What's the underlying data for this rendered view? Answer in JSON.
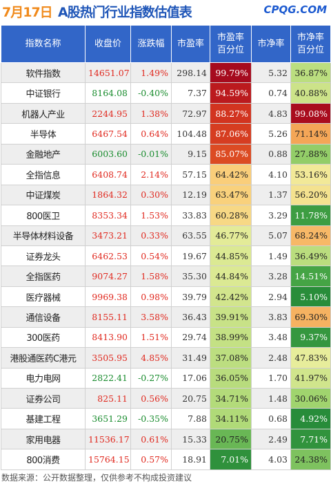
{
  "header": {
    "date": "7月17日",
    "title": "A股热门行业指数估值表",
    "logo": "CPQG.COM"
  },
  "table": {
    "columns": [
      "指数名称",
      "收盘价",
      "涨跌幅",
      "市盈率",
      "市盈率\n百分位",
      "市净率",
      "市净率\n百分位"
    ],
    "rows": [
      {
        "name": "软件指数",
        "close": "14651.07",
        "change": "1.49%",
        "pe": "298.14",
        "pe_pct": "99.79%",
        "pb": "5.32",
        "pb_pct": "36.87%"
      },
      {
        "name": "中证银行",
        "close": "8164.08",
        "change": "-0.40%",
        "pe": "7.37",
        "pe_pct": "94.59%",
        "pb": "0.74",
        "pb_pct": "40.88%"
      },
      {
        "name": "机器人产业",
        "close": "2244.95",
        "change": "1.38%",
        "pe": "72.97",
        "pe_pct": "88.27%",
        "pb": "4.83",
        "pb_pct": "99.08%"
      },
      {
        "name": "半导体",
        "close": "6467.54",
        "change": "0.64%",
        "pe": "104.48",
        "pe_pct": "87.06%",
        "pb": "5.26",
        "pb_pct": "71.14%"
      },
      {
        "name": "金融地产",
        "close": "6003.60",
        "change": "-0.01%",
        "pe": "9.15",
        "pe_pct": "85.07%",
        "pb": "0.88",
        "pb_pct": "27.88%"
      },
      {
        "name": "全指信息",
        "close": "6408.74",
        "change": "2.14%",
        "pe": "57.15",
        "pe_pct": "64.42%",
        "pb": "4.10",
        "pb_pct": "53.16%"
      },
      {
        "name": "中证煤炭",
        "close": "1864.32",
        "change": "0.30%",
        "pe": "12.19",
        "pe_pct": "63.47%",
        "pb": "1.37",
        "pb_pct": "56.20%"
      },
      {
        "name": "800医卫",
        "close": "8353.34",
        "change": "1.53%",
        "pe": "33.83",
        "pe_pct": "60.28%",
        "pb": "3.29",
        "pb_pct": "11.78%"
      },
      {
        "name": "半导体材料设备",
        "close": "3473.21",
        "change": "0.33%",
        "pe": "63.55",
        "pe_pct": "46.77%",
        "pb": "5.07",
        "pb_pct": "68.24%"
      },
      {
        "name": "证券龙头",
        "close": "6462.53",
        "change": "0.54%",
        "pe": "19.67",
        "pe_pct": "44.85%",
        "pb": "1.49",
        "pb_pct": "36.49%"
      },
      {
        "name": "全指医药",
        "close": "9074.27",
        "change": "1.58%",
        "pe": "35.30",
        "pe_pct": "44.84%",
        "pb": "3.28",
        "pb_pct": "14.51%"
      },
      {
        "name": "医疗器械",
        "close": "9969.38",
        "change": "0.98%",
        "pe": "39.79",
        "pe_pct": "42.42%",
        "pb": "2.94",
        "pb_pct": "5.10%"
      },
      {
        "name": "通信设备",
        "close": "8155.11",
        "change": "3.58%",
        "pe": "36.43",
        "pe_pct": "39.91%",
        "pb": "3.83",
        "pb_pct": "69.30%"
      },
      {
        "name": "300医药",
        "close": "8413.90",
        "change": "1.51%",
        "pe": "29.74",
        "pe_pct": "38.99%",
        "pb": "3.48",
        "pb_pct": "9.37%"
      },
      {
        "name": "港股通医药C港元",
        "close": "3505.95",
        "change": "4.85%",
        "pe": "31.49",
        "pe_pct": "37.08%",
        "pb": "2.48",
        "pb_pct": "47.83%"
      },
      {
        "name": "电力电网",
        "close": "2822.41",
        "change": "-0.27%",
        "pe": "17.06",
        "pe_pct": "36.05%",
        "pb": "1.70",
        "pb_pct": "41.97%"
      },
      {
        "name": "证券公司",
        "close": "825.11",
        "change": "0.56%",
        "pe": "20.75",
        "pe_pct": "34.71%",
        "pb": "1.48",
        "pb_pct": "30.06%"
      },
      {
        "name": "基建工程",
        "close": "3651.29",
        "change": "-0.35%",
        "pe": "7.88",
        "pe_pct": "34.11%",
        "pb": "0.68",
        "pb_pct": "4.92%"
      },
      {
        "name": "家用电器",
        "close": "11536.17",
        "change": "0.61%",
        "pe": "15.33",
        "pe_pct": "20.75%",
        "pb": "2.49",
        "pb_pct": "7.71%"
      },
      {
        "name": "800消费",
        "close": "15764.15",
        "change": "0.57%",
        "pe": "18.91",
        "pe_pct": "7.01%",
        "pb": "4.03",
        "pb_pct": "24.38%"
      }
    ]
  },
  "colors": {
    "header_bg": "#3266c8",
    "up": "#e0281e",
    "down": "#178b2c",
    "date": "#f08a1c",
    "title": "#1f56b8"
  },
  "footer": "数据来源：公开数据整理，仅供参考不构成投资建议"
}
